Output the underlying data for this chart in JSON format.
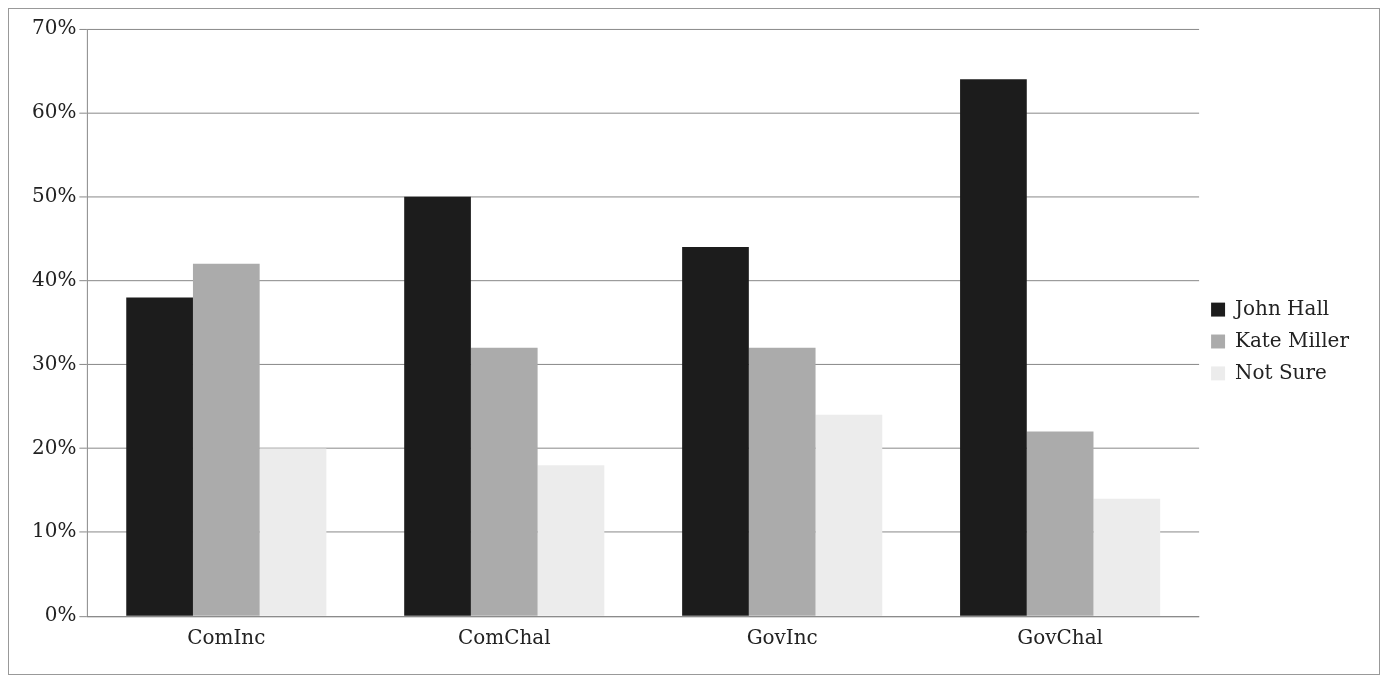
{
  "chart_data": {
    "type": "bar",
    "categories": [
      "ComInc",
      "ComChal",
      "GovInc",
      "GovChal"
    ],
    "series": [
      {
        "name": "John Hall",
        "color": "#1c1c1c",
        "values": [
          38,
          50,
          44,
          64
        ]
      },
      {
        "name": "Kate Miller",
        "color": "#ababab",
        "values": [
          42,
          32,
          32,
          22
        ]
      },
      {
        "name": "Not Sure",
        "color": "#ececec",
        "values": [
          20,
          18,
          24,
          14
        ]
      }
    ],
    "ylim": [
      0,
      70
    ],
    "yticks": [
      {
        "value": 0,
        "label": "0%"
      },
      {
        "value": 10,
        "label": "10%"
      },
      {
        "value": 20,
        "label": "20%"
      },
      {
        "value": 30,
        "label": "30%"
      },
      {
        "value": 40,
        "label": "40%"
      },
      {
        "value": 50,
        "label": "50%"
      },
      {
        "value": 60,
        "label": "60%"
      },
      {
        "value": 70,
        "label": "70%"
      }
    ],
    "grid": "y",
    "legend": "right"
  }
}
